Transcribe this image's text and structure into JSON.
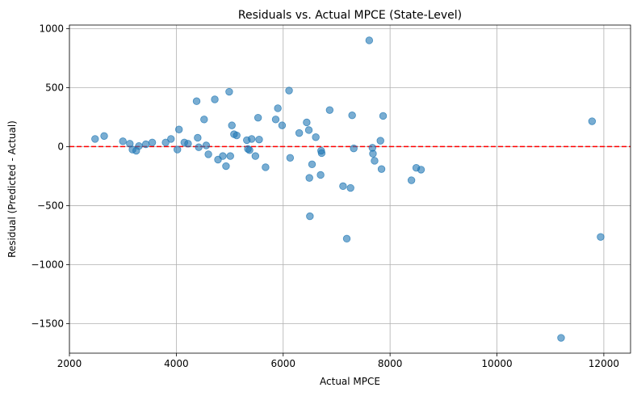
{
  "chart_data": {
    "type": "scatter",
    "title": "Residuals vs. Actual MPCE (State-Level)",
    "xlabel": "Actual MPCE",
    "ylabel": "Residual (Predicted - Actual)",
    "xlim": [
      2000,
      12500
    ],
    "ylim": [
      -1750,
      1030
    ],
    "xticks": [
      2000,
      4000,
      6000,
      8000,
      10000,
      12000
    ],
    "yticks": [
      -1500,
      -1000,
      -500,
      0,
      500,
      1000
    ],
    "grid": true,
    "reference_line": {
      "y": 0,
      "style": "dashed",
      "color": "#ff0000"
    },
    "point_color": "#1f77b4",
    "points": [
      {
        "x": 2480,
        "y": 65
      },
      {
        "x": 2650,
        "y": 90
      },
      {
        "x": 3000,
        "y": 45
      },
      {
        "x": 3130,
        "y": 25
      },
      {
        "x": 3180,
        "y": -25
      },
      {
        "x": 3250,
        "y": -35
      },
      {
        "x": 3300,
        "y": 5
      },
      {
        "x": 3430,
        "y": 20
      },
      {
        "x": 3550,
        "y": 35
      },
      {
        "x": 3800,
        "y": 35
      },
      {
        "x": 3900,
        "y": 65
      },
      {
        "x": 4020,
        "y": -25
      },
      {
        "x": 4050,
        "y": 145
      },
      {
        "x": 4150,
        "y": 35
      },
      {
        "x": 4220,
        "y": 25
      },
      {
        "x": 4380,
        "y": 385
      },
      {
        "x": 4400,
        "y": 75
      },
      {
        "x": 4420,
        "y": -5
      },
      {
        "x": 4520,
        "y": 230
      },
      {
        "x": 4560,
        "y": 10
      },
      {
        "x": 4600,
        "y": -65
      },
      {
        "x": 4720,
        "y": 400
      },
      {
        "x": 4780,
        "y": -110
      },
      {
        "x": 4870,
        "y": -80
      },
      {
        "x": 4930,
        "y": -165
      },
      {
        "x": 4990,
        "y": 465
      },
      {
        "x": 5010,
        "y": -80
      },
      {
        "x": 5040,
        "y": 180
      },
      {
        "x": 5080,
        "y": 105
      },
      {
        "x": 5130,
        "y": 95
      },
      {
        "x": 5320,
        "y": 55
      },
      {
        "x": 5340,
        "y": -20
      },
      {
        "x": 5370,
        "y": -30
      },
      {
        "x": 5410,
        "y": 65
      },
      {
        "x": 5480,
        "y": -80
      },
      {
        "x": 5530,
        "y": 245
      },
      {
        "x": 5550,
        "y": 60
      },
      {
        "x": 5670,
        "y": -175
      },
      {
        "x": 5860,
        "y": 230
      },
      {
        "x": 5900,
        "y": 325
      },
      {
        "x": 5980,
        "y": 180
      },
      {
        "x": 6110,
        "y": 475
      },
      {
        "x": 6130,
        "y": -95
      },
      {
        "x": 6300,
        "y": 115
      },
      {
        "x": 6440,
        "y": 205
      },
      {
        "x": 6480,
        "y": 140
      },
      {
        "x": 6490,
        "y": -265
      },
      {
        "x": 6500,
        "y": -590
      },
      {
        "x": 6540,
        "y": -150
      },
      {
        "x": 6610,
        "y": 80
      },
      {
        "x": 6700,
        "y": -240
      },
      {
        "x": 6710,
        "y": -35
      },
      {
        "x": 6720,
        "y": -55
      },
      {
        "x": 6870,
        "y": 310
      },
      {
        "x": 7120,
        "y": -335
      },
      {
        "x": 7190,
        "y": -780
      },
      {
        "x": 7260,
        "y": -350
      },
      {
        "x": 7290,
        "y": 265
      },
      {
        "x": 7320,
        "y": -15
      },
      {
        "x": 7610,
        "y": 900
      },
      {
        "x": 7670,
        "y": -10
      },
      {
        "x": 7680,
        "y": -60
      },
      {
        "x": 7710,
        "y": -120
      },
      {
        "x": 7820,
        "y": 50
      },
      {
        "x": 7840,
        "y": -190
      },
      {
        "x": 7870,
        "y": 260
      },
      {
        "x": 8400,
        "y": -285
      },
      {
        "x": 8490,
        "y": -180
      },
      {
        "x": 8580,
        "y": -195
      },
      {
        "x": 11200,
        "y": -1620
      },
      {
        "x": 11780,
        "y": 215
      },
      {
        "x": 11940,
        "y": -765
      }
    ]
  }
}
